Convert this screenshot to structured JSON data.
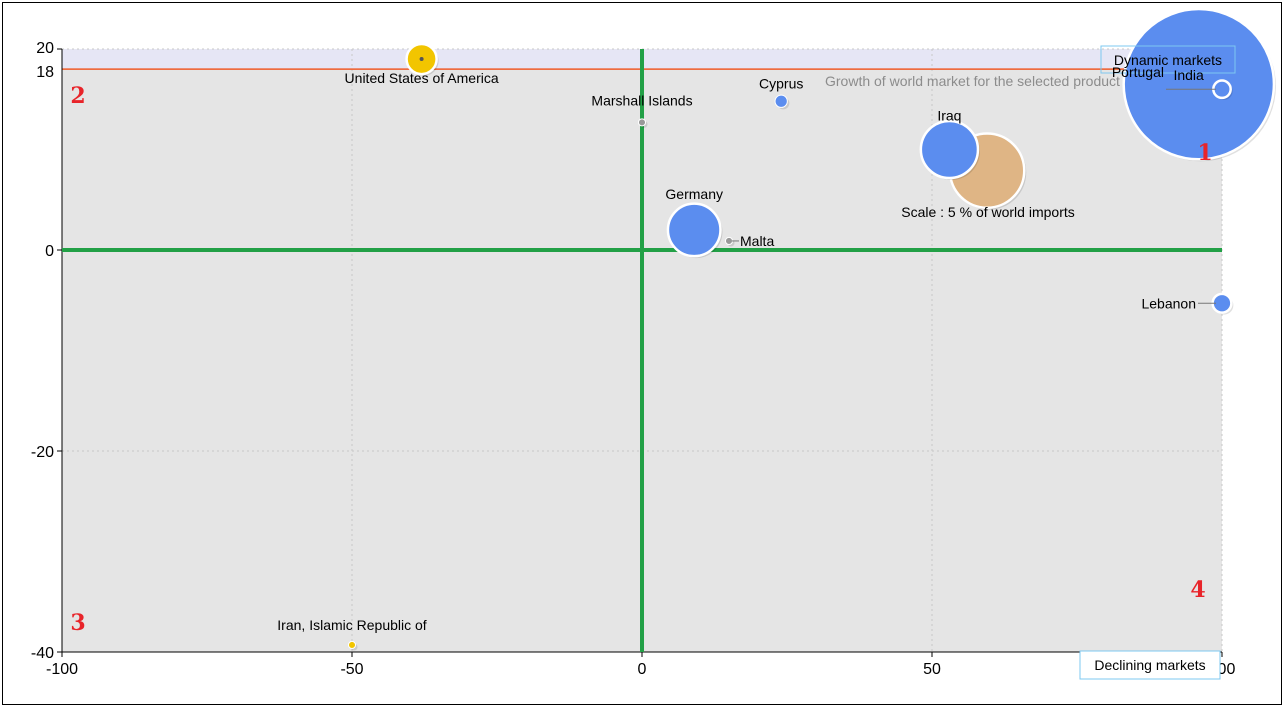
{
  "chart_data": {
    "type": "scatter",
    "xlim": [
      -100,
      100
    ],
    "ylim": [
      -40,
      20
    ],
    "x_ticks": [
      -100,
      -50,
      0,
      50,
      100
    ],
    "y_ticks": [
      20,
      0,
      -20,
      -40
    ],
    "grid": true,
    "reference_line": {
      "y": 18,
      "label": "18",
      "color": "#f05a28",
      "caption": "Growth of world market for the selected product"
    },
    "quadrant_labels": [
      {
        "text": "1",
        "quadrant": "top-right"
      },
      {
        "text": "2",
        "quadrant": "top-left"
      },
      {
        "text": "3",
        "quadrant": "bottom-left"
      },
      {
        "text": "4",
        "quadrant": "bottom-right"
      }
    ],
    "zone_labels": {
      "top": "Dynamic markets",
      "bottom": "Declining markets"
    },
    "scale_note": "Scale : 5 % of world imports",
    "colors": {
      "blue": "#5b8def",
      "yellow": "#f2c500",
      "tan": "#dfb585",
      "axis": "#22a046",
      "band": "#e6e6f5",
      "plot": "#e5e5e5"
    },
    "points": [
      {
        "label": "United States of America",
        "x": -38,
        "y": 19,
        "size": 1.8,
        "color": "yellow"
      },
      {
        "label": "Marshall Islands",
        "x": 0,
        "y": 12.7,
        "size": 0.1,
        "color": "gray"
      },
      {
        "label": "Cyprus",
        "x": 24,
        "y": 14.8,
        "size": 0.3,
        "color": "blue"
      },
      {
        "label": "India",
        "x": 96,
        "y": 16.5,
        "size": 45,
        "color": "blue"
      },
      {
        "label": "Portugal",
        "x": 100,
        "y": 16,
        "size": 0.6,
        "color": "blue"
      },
      {
        "label": "Iraq",
        "x": 53,
        "y": 10,
        "size": 6.5,
        "color": "blue"
      },
      {
        "label": "",
        "x": 59.5,
        "y": 7.9,
        "size": 11,
        "color": "tan"
      },
      {
        "label": "Germany",
        "x": 9,
        "y": 2,
        "size": 5.5,
        "color": "blue"
      },
      {
        "label": "Malta",
        "x": 15,
        "y": 0.9,
        "size": 0.1,
        "color": "gray"
      },
      {
        "label": "Lebanon",
        "x": 100,
        "y": -5.3,
        "size": 0.7,
        "color": "blue"
      },
      {
        "label": "Iran, Islamic Republic of",
        "x": -50,
        "y": -39.3,
        "size": 0.1,
        "color": "yellow"
      }
    ]
  }
}
